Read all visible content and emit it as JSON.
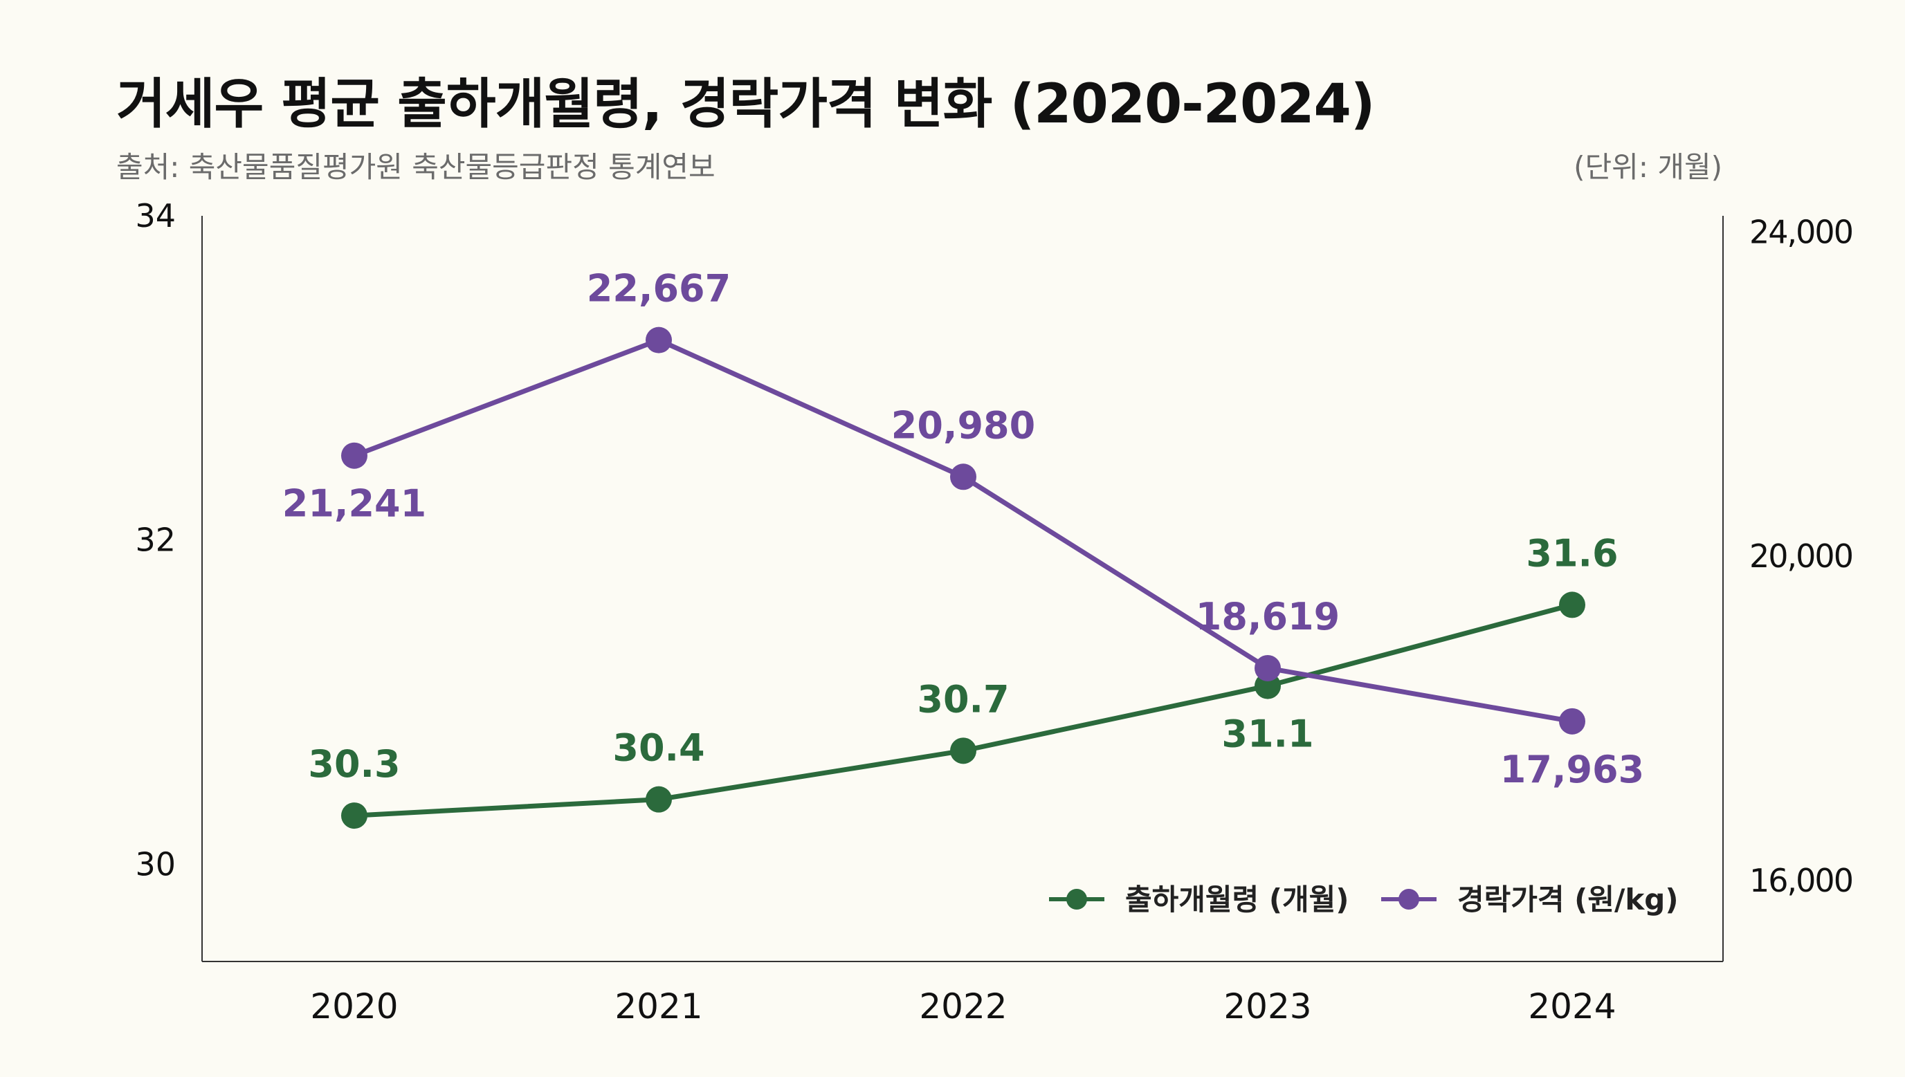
{
  "header": {
    "title": "거세우 평균 출하개월령, 경락가격 변화 (2020-2024)",
    "source": "출처: 축산물품질평가원 축산물등급판정 통계연보",
    "unit": "(단위: 개월)"
  },
  "chart_data": {
    "type": "line",
    "categories": [
      "2020",
      "2021",
      "2022",
      "2023",
      "2024"
    ],
    "series": [
      {
        "name": "출하개월령 (개월)",
        "axis": "left",
        "color": "#2b6a3c",
        "values": [
          30.3,
          30.4,
          30.7,
          31.1,
          31.6
        ],
        "labels": [
          "30.3",
          "30.4",
          "30.7",
          "31.1",
          "31.6"
        ],
        "label_pos": [
          "above",
          "above",
          "above",
          "below",
          "above"
        ]
      },
      {
        "name": "경락가격 (원/kg)",
        "axis": "right",
        "color": "#6d4a9c",
        "values": [
          21241,
          22667,
          20980,
          18619,
          17963
        ],
        "labels": [
          "21,241",
          "22,667",
          "20,980",
          "18,619",
          "17,963"
        ],
        "label_pos": [
          "below",
          "above",
          "above",
          "above",
          "below"
        ]
      }
    ],
    "y_left": {
      "ticks": [
        30,
        32,
        34
      ],
      "tick_labels": [
        "30",
        "32",
        "34"
      ],
      "range": [
        29.4,
        34.0
      ]
    },
    "y_right": {
      "ticks": [
        16000,
        20000,
        24000
      ],
      "tick_labels": [
        "16,000",
        "20,000",
        "24,000"
      ],
      "range": [
        15000,
        24200
      ]
    },
    "grid": false,
    "legend": "bottom-right"
  }
}
